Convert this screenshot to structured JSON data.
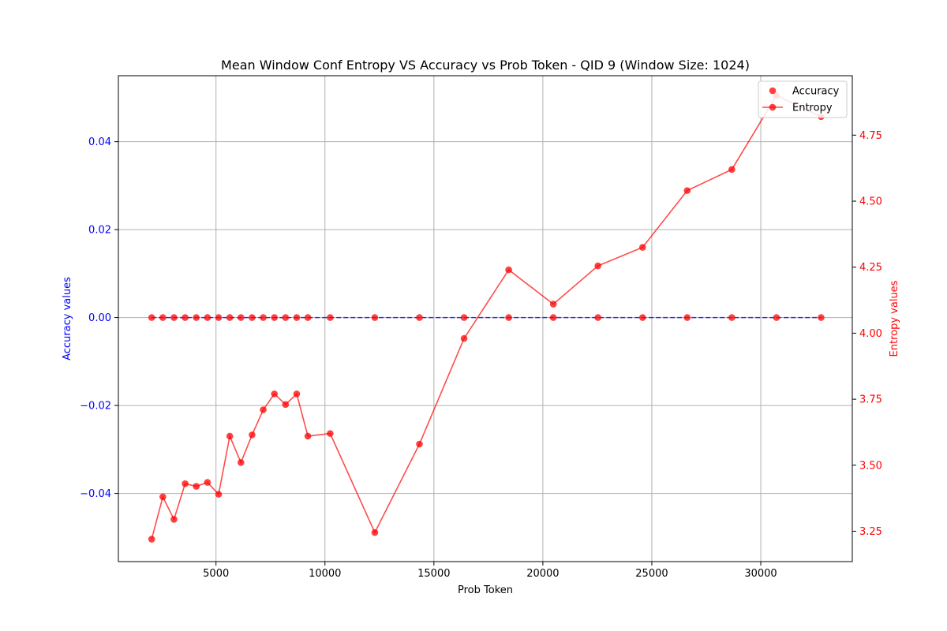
{
  "chart_data": {
    "type": "line",
    "title": "Mean Window Conf Entropy VS Accuracy vs Prob Token - QID 9 (Window Size: 1024)",
    "xlabel": "Prob Token",
    "ylabel_left": "Accuracy values",
    "ylabel_right": "Entropy values",
    "xlim": [
      520,
      34200
    ],
    "ylim_left": [
      -0.0555,
      0.055
    ],
    "ylim_right": [
      3.135,
      4.975
    ],
    "xticks": [
      5000,
      10000,
      15000,
      20000,
      25000,
      30000
    ],
    "xtick_labels": [
      "5000",
      "10000",
      "15000",
      "20000",
      "25000",
      "30000"
    ],
    "yticks_left": [
      -0.04,
      -0.02,
      0.0,
      0.02,
      0.04
    ],
    "ytick_labels_left": [
      "−0.04",
      "−0.02",
      "0.00",
      "0.02",
      "0.04"
    ],
    "yticks_right": [
      3.25,
      3.5,
      3.75,
      4.0,
      4.25,
      4.5,
      4.75
    ],
    "ytick_labels_right": [
      "3.25",
      "3.50",
      "3.75",
      "4.00",
      "4.25",
      "4.50",
      "4.75"
    ],
    "grid": true,
    "legend_position": "top-right",
    "legend": [
      "Accuracy",
      "Entropy"
    ],
    "colors": {
      "left_axis": "#0000ff",
      "right_axis": "#ff0000",
      "accuracy_points": "#ff0000",
      "accuracy_line": "#0000cc",
      "entropy_line": "#ff0000",
      "grid": "#b0b0b0"
    },
    "x": [
      2048,
      2560,
      3072,
      3584,
      4096,
      4608,
      5120,
      5632,
      6144,
      6656,
      7168,
      7680,
      8192,
      8704,
      9216,
      10240,
      12288,
      14336,
      16384,
      18432,
      20480,
      22528,
      24576,
      26624,
      28672,
      30720,
      32768
    ],
    "series": [
      {
        "name": "Accuracy",
        "axis": "left",
        "style": "scatter+dashed",
        "values": [
          0,
          0,
          0,
          0,
          0,
          0,
          0,
          0,
          0,
          0,
          0,
          0,
          0,
          0,
          0,
          0,
          0,
          0,
          0,
          0,
          0,
          0,
          0,
          0,
          0,
          0,
          0
        ]
      },
      {
        "name": "Entropy",
        "axis": "right",
        "style": "line+markers",
        "values": [
          3.22,
          3.38,
          3.295,
          3.43,
          3.42,
          3.435,
          3.39,
          3.61,
          3.51,
          3.615,
          3.71,
          3.77,
          3.73,
          3.77,
          3.61,
          3.62,
          3.245,
          3.58,
          3.98,
          4.24,
          4.11,
          4.255,
          4.325,
          4.54,
          4.62,
          4.9,
          4.82
        ]
      }
    ]
  }
}
